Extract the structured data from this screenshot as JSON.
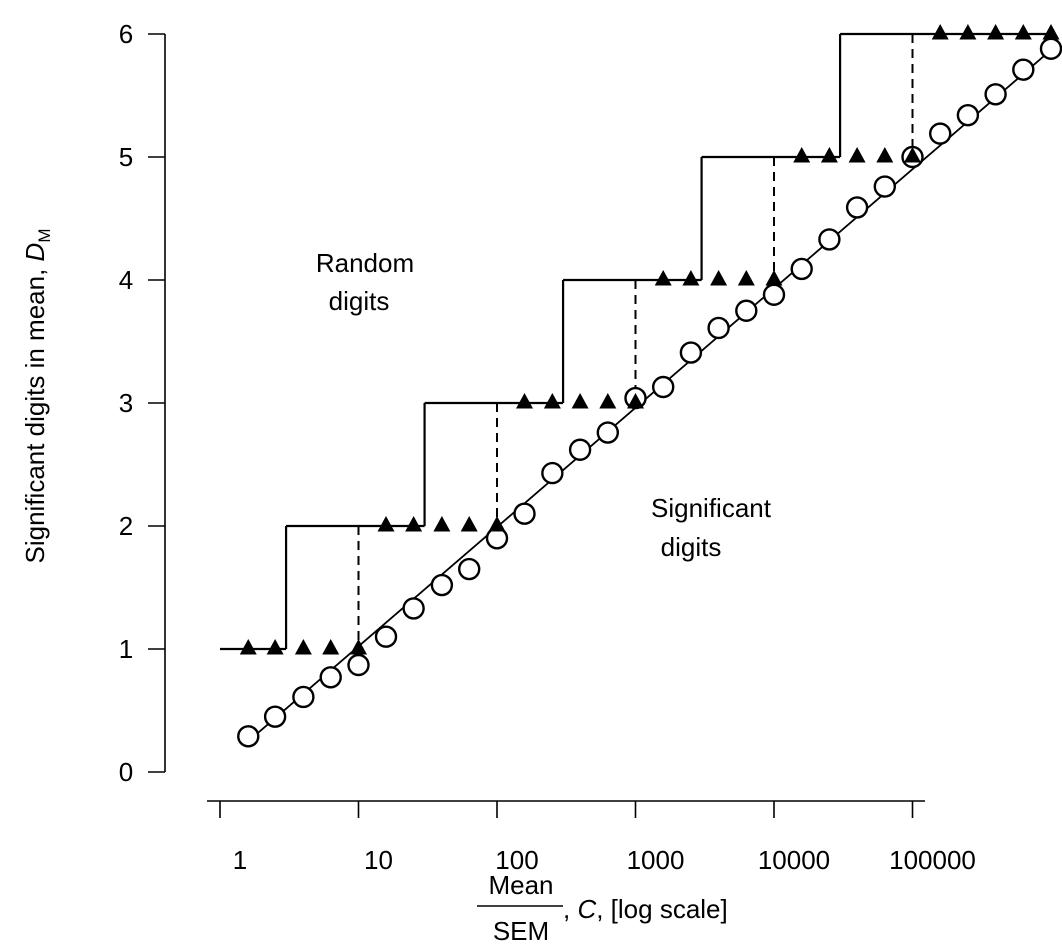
{
  "chart_data": {
    "type": "scatter",
    "x_scale": "log10",
    "xlim": [
      1,
      1000000
    ],
    "ylim": [
      0,
      6
    ],
    "grid": false,
    "x_ticks": [
      1,
      10,
      100,
      1000,
      10000,
      100000
    ],
    "x_tick_labels": [
      "1",
      "10",
      "100",
      "1000",
      "10000",
      "100000"
    ],
    "y_ticks": [
      0,
      1,
      2,
      3,
      4,
      5,
      6
    ],
    "y_tick_labels": [
      "0",
      "1",
      "2",
      "3",
      "4",
      "5",
      "6"
    ],
    "ylabel": {
      "main": "Significant digits in mean, ",
      "var": "D",
      "sub": "M"
    },
    "xlabel": {
      "num": "Mean",
      "den": "SEM",
      "comma1": ", ",
      "var": "C",
      "rest": ", [log scale]"
    },
    "annotations": {
      "random": [
        "Random",
        "digits"
      ],
      "significant": [
        "Significant",
        "digits"
      ]
    },
    "series": [
      {
        "marker": "open-circle",
        "x": [
          1.6,
          2.5,
          4,
          6.3,
          10,
          15.8,
          25,
          40,
          63,
          100,
          158,
          251,
          398,
          631,
          1000,
          1585,
          2512,
          3981,
          6310,
          10000,
          15850,
          25120,
          39810,
          63100,
          100000,
          158500,
          251200,
          398100,
          631000,
          1000000
        ],
        "y": [
          0.29,
          0.45,
          0.61,
          0.77,
          0.87,
          1.1,
          1.33,
          1.52,
          1.65,
          1.9,
          2.1,
          2.43,
          2.62,
          2.76,
          3.04,
          3.13,
          3.41,
          3.61,
          3.75,
          3.88,
          4.09,
          4.33,
          4.59,
          4.76,
          5.0,
          5.19,
          5.34,
          5.51,
          5.71,
          5.88
        ]
      },
      {
        "marker": "filled-triangle",
        "x": [
          1.6,
          2.5,
          4,
          6.3,
          10,
          15.8,
          25,
          40,
          63,
          100,
          158,
          251,
          398,
          631,
          1000,
          1585,
          2512,
          3981,
          6310,
          10000,
          15850,
          25120,
          39810,
          63100,
          100000,
          158500,
          251200,
          398100,
          631000,
          1000000
        ],
        "y": [
          1,
          1,
          1,
          1,
          1,
          2,
          2,
          2,
          2,
          2,
          3,
          3,
          3,
          3,
          3,
          4,
          4,
          4,
          4,
          4,
          5,
          5,
          5,
          5,
          5,
          6,
          6,
          6,
          6,
          6
        ]
      }
    ],
    "fit_line": {
      "x": [
        1.6,
        1000000
      ],
      "y": [
        0.25,
        5.87
      ]
    },
    "step_function": [
      {
        "x": [
          1,
          3
        ],
        "y": 1
      },
      {
        "x": [
          3,
          30
        ],
        "y": 2
      },
      {
        "x": [
          30,
          300
        ],
        "y": 3
      },
      {
        "x": [
          300,
          3000
        ],
        "y": 4
      },
      {
        "x": [
          3000,
          30000
        ],
        "y": 5
      },
      {
        "x": [
          30000,
          1000000
        ],
        "y": 6
      }
    ],
    "dashed_drops": [
      {
        "x": 10,
        "y": [
          1,
          2
        ]
      },
      {
        "x": 100,
        "y": [
          2,
          3
        ]
      },
      {
        "x": 1000,
        "y": [
          3,
          4
        ]
      },
      {
        "x": 10000,
        "y": [
          4,
          5
        ]
      },
      {
        "x": 100000,
        "y": [
          5,
          6
        ]
      }
    ]
  }
}
